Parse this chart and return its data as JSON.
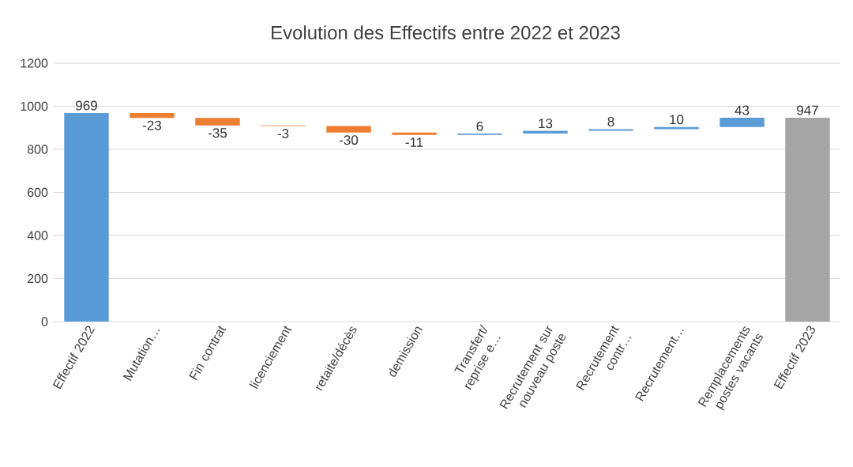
{
  "chart_data": {
    "type": "bar",
    "title": "Evolution des Effectifs entre 2022 et 2023",
    "categories": [
      "Effectif 2022",
      "Mutation…",
      "Fin contrat",
      "licenciement",
      "retaite/décès",
      "demission",
      "Transfert/ reprise e…",
      "Recrutement sur nouveau poste",
      "Recrutement contr…",
      "Recrutement…",
      "Remplacements postes vacants",
      "Effectif 2023"
    ],
    "values": [
      969,
      -23,
      -35,
      -3,
      -30,
      -11,
      6,
      13,
      8,
      10,
      43,
      947
    ],
    "base": [
      0,
      969,
      946,
      911,
      908,
      878,
      867,
      873,
      886,
      894,
      904,
      0
    ],
    "colors": [
      "#5b9bd5",
      "#ed7d31",
      "#ed7d31",
      "#ed7d31",
      "#ed7d31",
      "#ed7d31",
      "#5b9bd5",
      "#5b9bd5",
      "#5b9bd5",
      "#5b9bd5",
      "#5b9bd5",
      "#a5a5a5"
    ],
    "data_labels": true,
    "ylim": [
      0,
      1200
    ],
    "yticks": [
      0,
      200,
      400,
      600,
      800,
      1000,
      1200
    ],
    "grid": "y"
  }
}
